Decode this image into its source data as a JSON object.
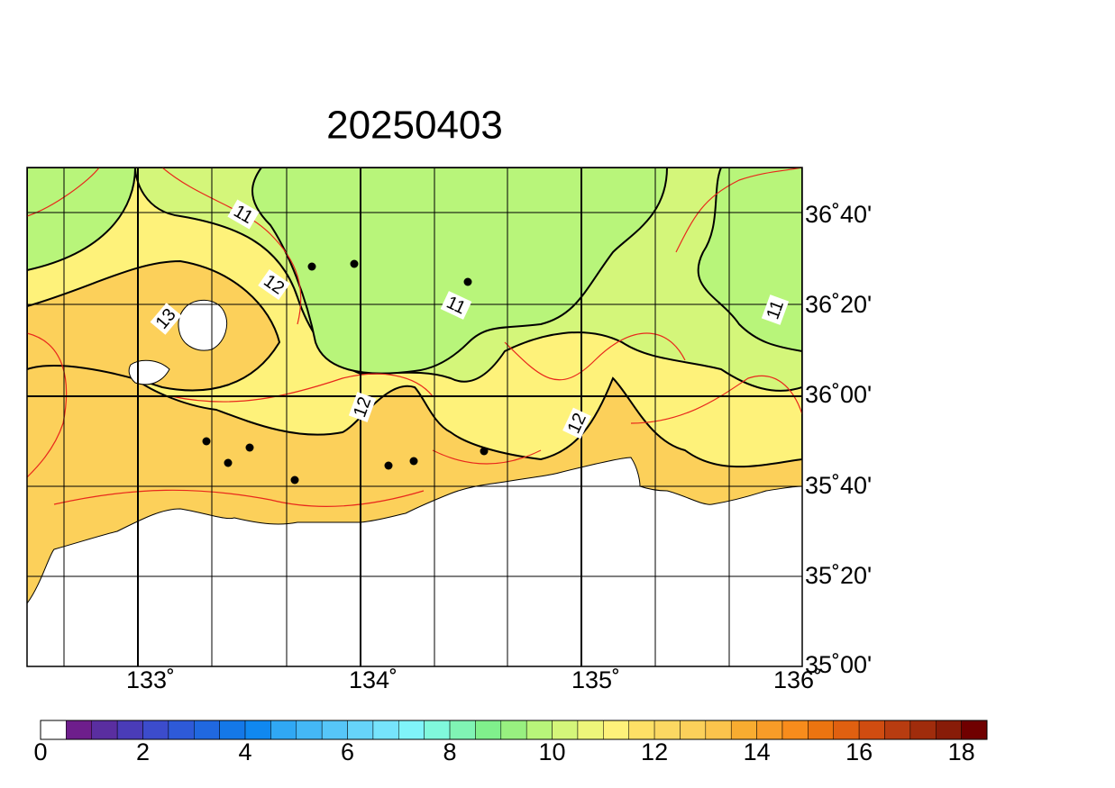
{
  "title": "20250403",
  "lat_labels": [
    "36˚40'",
    "36˚20'",
    "36˚00'",
    "35˚40'",
    "35˚20'",
    "35˚00'"
  ],
  "lon_labels": [
    "133˚",
    "134˚",
    "135˚",
    "136˚"
  ],
  "contour_labels": [
    "11",
    "12",
    "13",
    "11",
    "12",
    "12",
    "11"
  ],
  "colorbar": {
    "lim": [
      0,
      18.5
    ],
    "ticks": [
      0,
      2,
      4,
      6,
      8,
      10,
      12,
      14,
      16,
      18
    ],
    "colors": [
      "#ffffff",
      "#6e1e8c",
      "#5a2ea0",
      "#4a3cb8",
      "#3c4ccc",
      "#2e5ad8",
      "#2068e0",
      "#1478e8",
      "#1088f0",
      "#30a8f4",
      "#44b8f6",
      "#56c6f8",
      "#66d4fa",
      "#76e4fc",
      "#80f4fa",
      "#80f8dc",
      "#80f4b4",
      "#80f08c",
      "#98f080",
      "#b8f57a",
      "#d4f67a",
      "#eef67a",
      "#fef27a",
      "#fee066",
      "#fcd862",
      "#fcd05a",
      "#fcc44c",
      "#f8ac30",
      "#f89c28",
      "#f88c1c",
      "#ec7410",
      "#e06010",
      "#d04c10",
      "#b83c10",
      "#a02c0c",
      "#881c08",
      "#700000"
    ]
  }
}
